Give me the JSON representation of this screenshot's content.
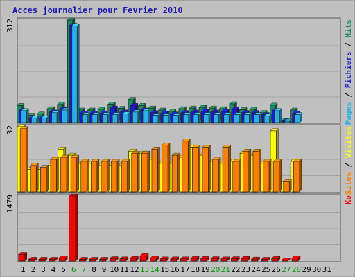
{
  "chart_data": {
    "type": "bar",
    "title": "Acces journalier pour Fevrier 2010",
    "days": [
      "1",
      "2",
      "3",
      "4",
      "5",
      "6",
      "7",
      "8",
      "9",
      "10",
      "11",
      "12",
      "13",
      "14",
      "15",
      "16",
      "17",
      "18",
      "19",
      "20",
      "21",
      "22",
      "23",
      "24",
      "25",
      "26",
      "27",
      "28",
      "29",
      "30",
      "31"
    ],
    "weekend_days": [
      "6",
      "7",
      "13",
      "14",
      "20",
      "21",
      "27",
      "28"
    ],
    "weekend_color": "#009900",
    "panels": [
      {
        "id": "hits",
        "ymax_label": "312",
        "ymax": 312,
        "legend": [
          {
            "name": "Pages",
            "color": "#2ab0e8"
          },
          {
            "name": "Fichiers",
            "color": "#1a1add"
          },
          {
            "name": "Hits",
            "color": "#1e8a60"
          }
        ],
        "series": [
          {
            "name": "Hits",
            "color": "#1e8a60",
            "values": [
              52,
              22,
              26,
              42,
              55,
              312,
              38,
              38,
              40,
              56,
              43,
              70,
              52,
              44,
              38,
              34,
              42,
              44,
              46,
              44,
              42,
              57,
              39,
              40,
              30,
              53,
              7,
              38
            ]
          },
          {
            "name": "Fichiers",
            "color": "#1a1add",
            "values": [
              36,
              14,
              14,
              32,
              40,
              296,
              28,
              28,
              28,
              44,
              32,
              52,
              38,
              30,
              28,
              26,
              30,
              32,
              34,
              32,
              34,
              40,
              30,
              30,
              24,
              36,
              5,
              28
            ]
          },
          {
            "name": "Pages",
            "color": "#2ab0e8",
            "values": [
              36,
              14,
              14,
              30,
              38,
              294,
              24,
              24,
              24,
              24,
              26,
              32,
              36,
              22,
              22,
              22,
              24,
              24,
              24,
              24,
              24,
              24,
              24,
              24,
              20,
              36,
              4,
              24
            ]
          }
        ]
      },
      {
        "id": "visits",
        "ymax_label": "32",
        "ymax": 32,
        "legend": [
          {
            "name": "Sites",
            "color": "#ff8000"
          },
          {
            "name": "Visites",
            "color": "#ffff00"
          }
        ],
        "series": [
          {
            "name": "Visites",
            "color": "#ffff00",
            "values": [
              32,
              11,
              11,
              13,
              21,
              18,
              14,
              14,
              13,
              13,
              13,
              20,
              19,
              16,
              14,
              14,
              17,
              22,
              18,
              15,
              14,
              15,
              19,
              18,
              14,
              30,
              4,
              15
            ]
          },
          {
            "name": "Sites",
            "color": "#ff8000",
            "values": [
              31,
              13,
              12,
              16,
              17,
              17,
              15,
              15,
              15,
              15,
              15,
              19,
              19,
              21,
              23,
              18,
              25,
              22,
              22,
              16,
              22,
              15,
              20,
              20,
              15,
              15,
              5,
              15
            ]
          }
        ]
      },
      {
        "id": "kb",
        "ymax_label": "1479",
        "ymax": 1479,
        "legend": [
          {
            "name": "Ko",
            "color": "#ff0000"
          }
        ],
        "series": [
          {
            "name": "Ko",
            "color": "#ff0000",
            "values": [
              150,
              40,
              40,
              40,
              75,
              1479,
              40,
              40,
              40,
              55,
              50,
              60,
              120,
              65,
              50,
              50,
              50,
              60,
              60,
              55,
              50,
              55,
              60,
              45,
              40,
              60,
              15,
              70
            ]
          }
        ]
      }
    ]
  }
}
